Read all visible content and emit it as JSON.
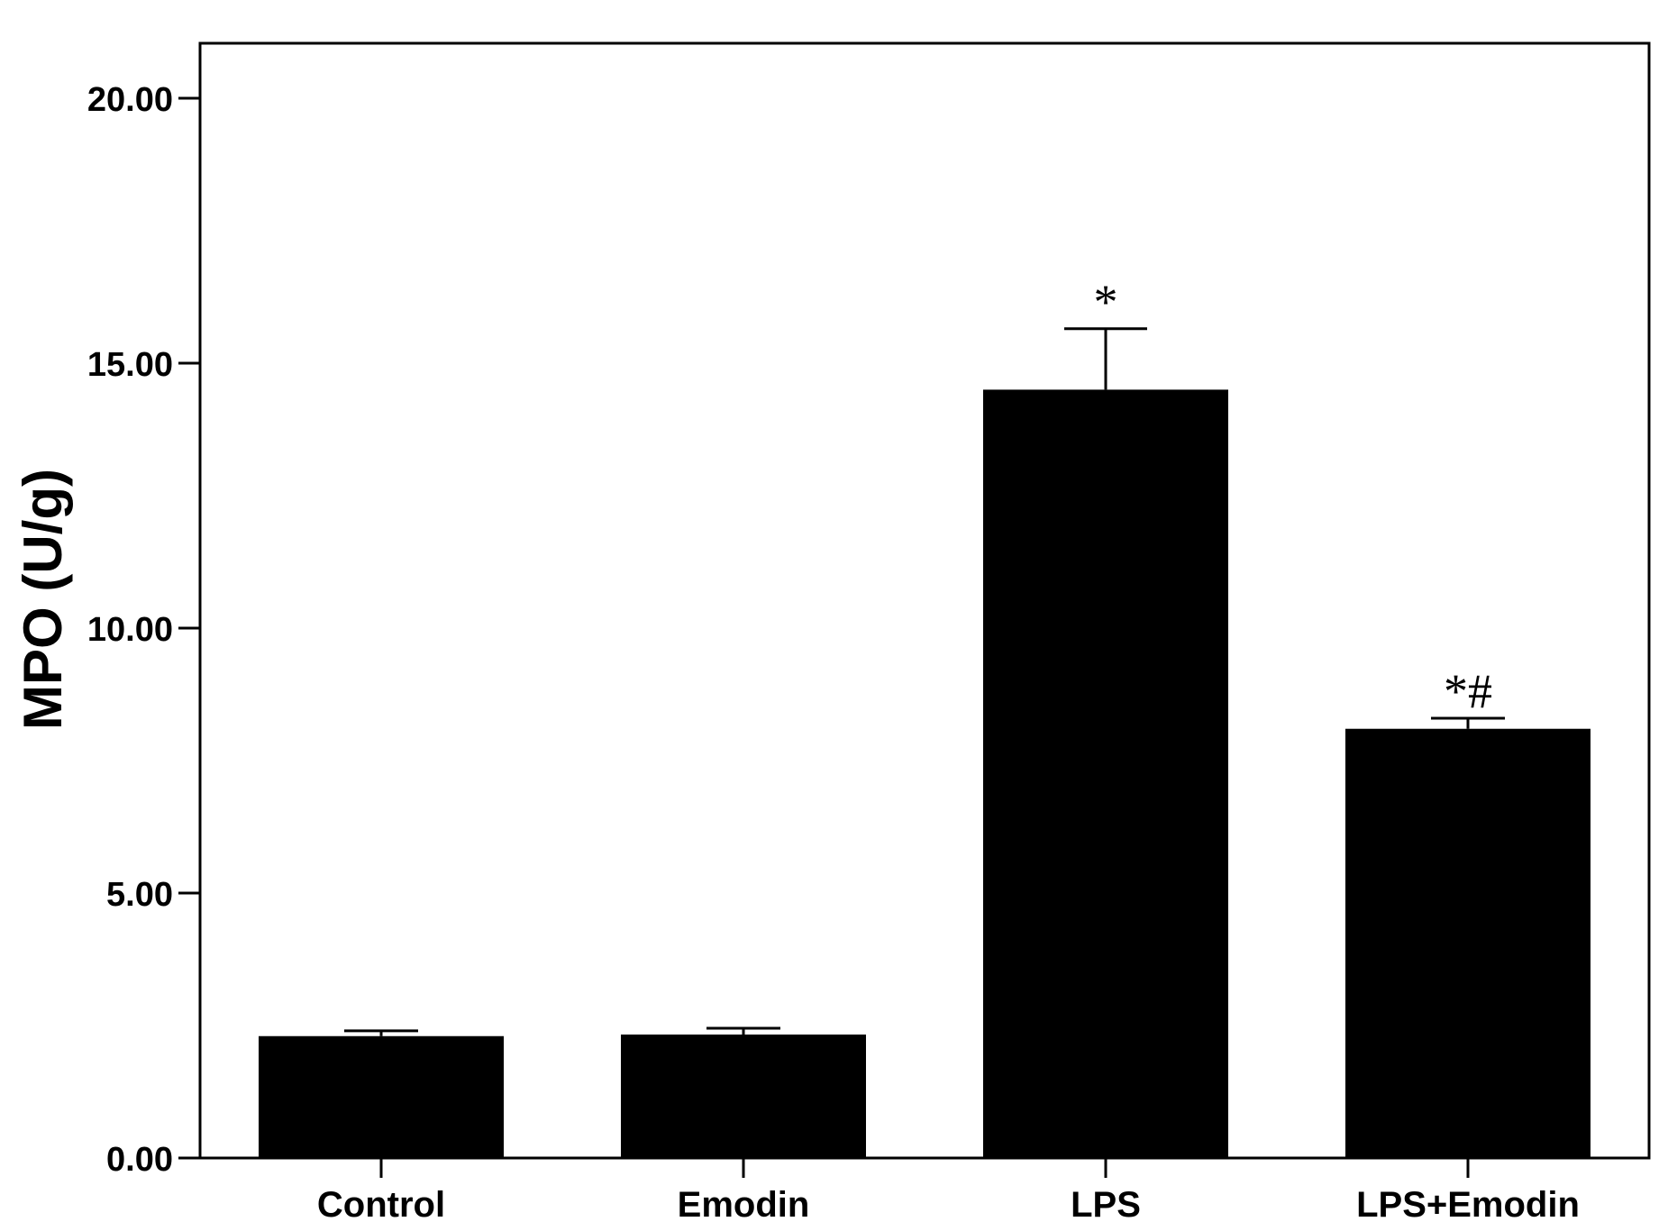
{
  "chart_data": {
    "type": "bar",
    "title": "",
    "xlabel": "",
    "ylabel": "MPO (U/g)",
    "ylim": [
      0,
      21
    ],
    "yticks": [
      0,
      5,
      10,
      15,
      20
    ],
    "ytick_labels": [
      "0.00",
      "5.00",
      "10.00",
      "15.00",
      "20.00"
    ],
    "categories": [
      "Control",
      "Emodin",
      "LPS",
      "LPS+Emodin"
    ],
    "values": [
      2.3,
      2.33,
      14.5,
      8.1
    ],
    "error_upper": [
      2.4,
      2.45,
      15.65,
      8.3
    ],
    "annotations": [
      "",
      "",
      "*",
      "*#"
    ],
    "bar_color": "#000000",
    "grid": false,
    "legend": "none"
  }
}
